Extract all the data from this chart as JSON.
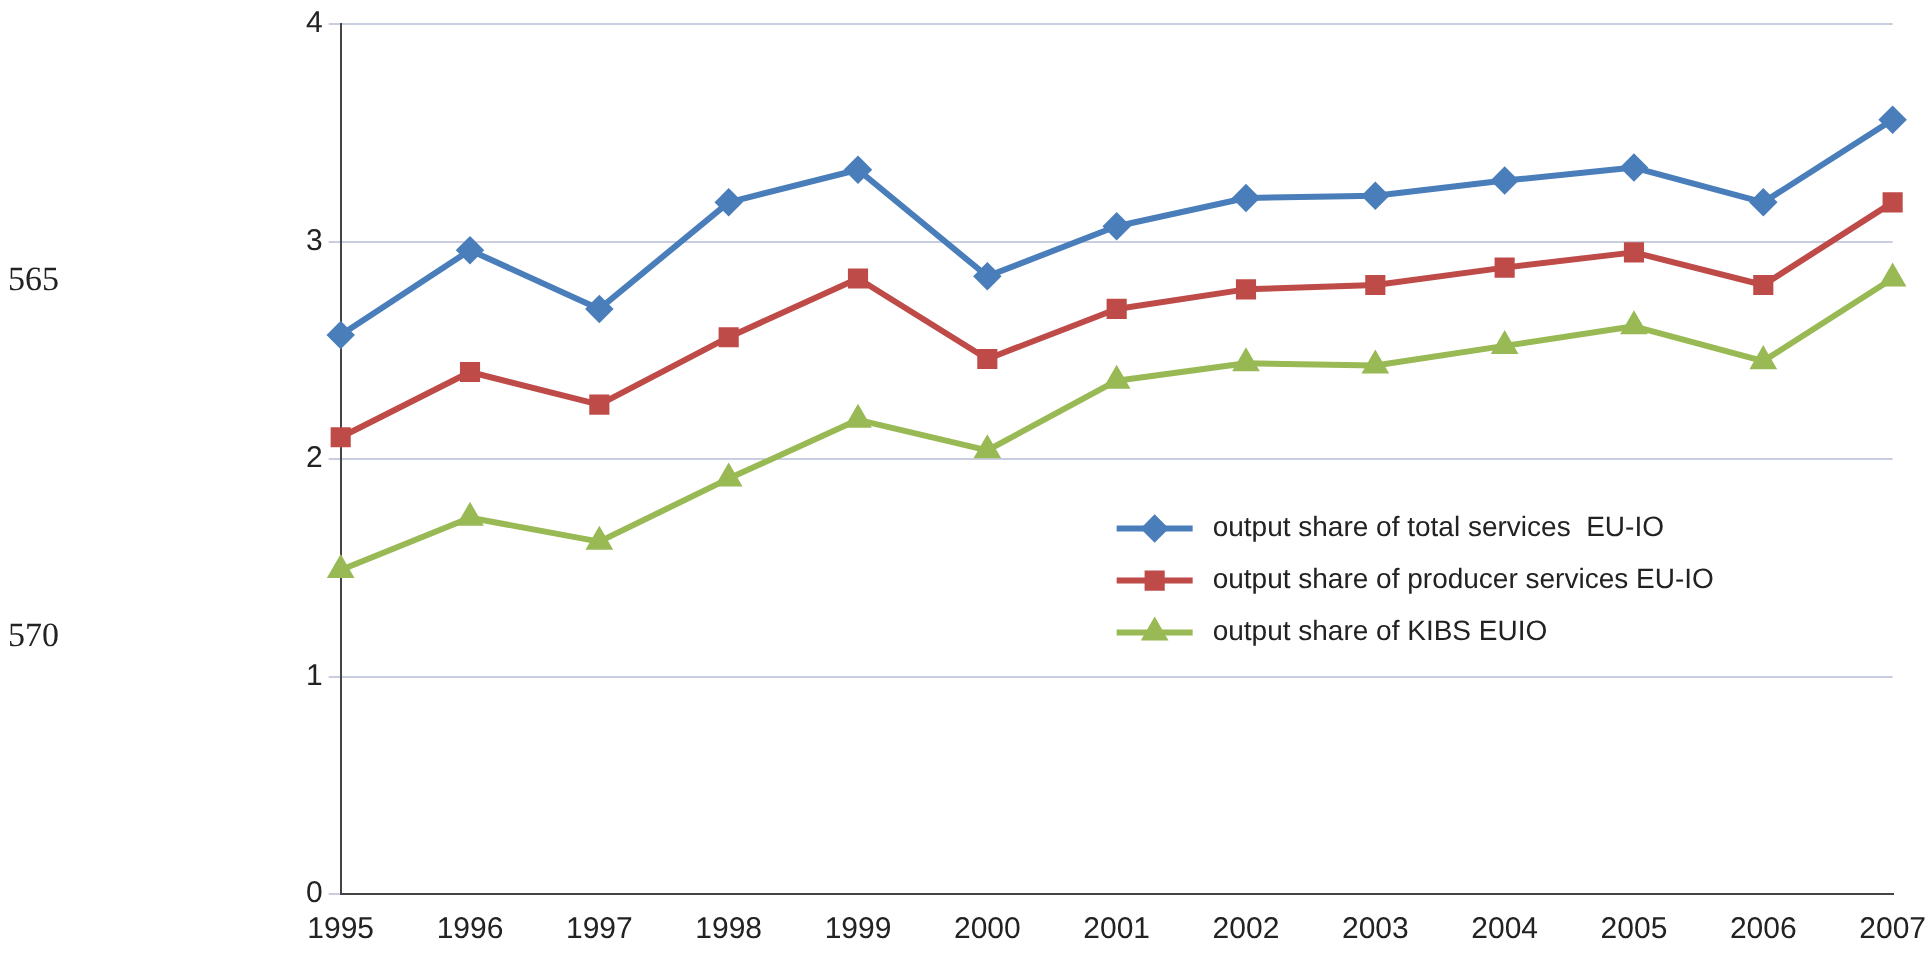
{
  "chart_data": {
    "type": "line",
    "categories": [
      "1995",
      "1996",
      "1997",
      "1998",
      "1999",
      "2000",
      "2001",
      "2002",
      "2003",
      "2004",
      "2005",
      "2006",
      "2007"
    ],
    "series": [
      {
        "name": "output share of total services  EU-IO",
        "color": "#4a7ebb",
        "marker": "diamond",
        "values": [
          2.57,
          2.96,
          2.69,
          3.18,
          3.33,
          2.84,
          3.07,
          3.2,
          3.21,
          3.28,
          3.34,
          3.18,
          3.56
        ]
      },
      {
        "name": "output share of producer services EU-IO",
        "color": "#be4b48",
        "marker": "square",
        "values": [
          2.1,
          2.4,
          2.25,
          2.56,
          2.83,
          2.46,
          2.69,
          2.78,
          2.8,
          2.88,
          2.95,
          2.8,
          3.18
        ]
      },
      {
        "name": "output share of KIBS EUIO",
        "color": "#98b954",
        "marker": "triangle",
        "values": [
          1.49,
          1.73,
          1.62,
          1.91,
          2.18,
          2.04,
          2.36,
          2.44,
          2.43,
          2.52,
          2.61,
          2.45,
          2.83
        ]
      }
    ],
    "ylim": [
      0,
      4
    ],
    "yticks": [
      0,
      1,
      2,
      3,
      4
    ],
    "grid": "y",
    "legend": "right",
    "line_style": "solid",
    "annotations": [
      "565",
      "570"
    ]
  }
}
